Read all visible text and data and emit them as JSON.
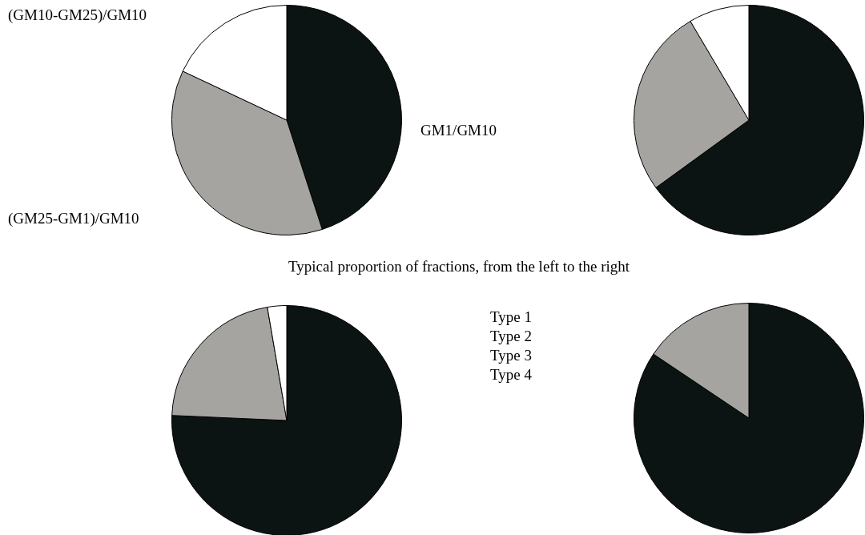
{
  "chart_data": [
    {
      "type": "pie",
      "categories": [
        "GM1/GM10",
        "(GM25-GM1)/GM10",
        "(GM10-GM25)/GM10"
      ],
      "values": [
        45,
        37,
        18
      ],
      "colors": [
        "#0b1412",
        "#a5a4a0",
        "#ffffff"
      ],
      "annotations": [
        "Typical proportion of fractions, from the left to the right",
        "Type 1",
        "Type 2",
        "Type 3",
        "Type 4"
      ]
    },
    {
      "type": "pie",
      "categories": [
        null,
        null,
        null
      ],
      "values": [
        65,
        26.5,
        8.5
      ],
      "colors": [
        "#0b1412",
        "#a5a4a0",
        "#ffffff"
      ]
    },
    {
      "type": "pie",
      "categories": [
        null,
        null,
        null
      ],
      "values": [
        75.7,
        21.6,
        2.7
      ],
      "colors": [
        "#0b1412",
        "#a5a4a0",
        "#ffffff"
      ]
    },
    {
      "type": "pie",
      "categories": [
        null,
        null
      ],
      "values": [
        84.4,
        15.6
      ],
      "colors": [
        "#0b1412",
        "#a5a4a0"
      ]
    }
  ]
}
